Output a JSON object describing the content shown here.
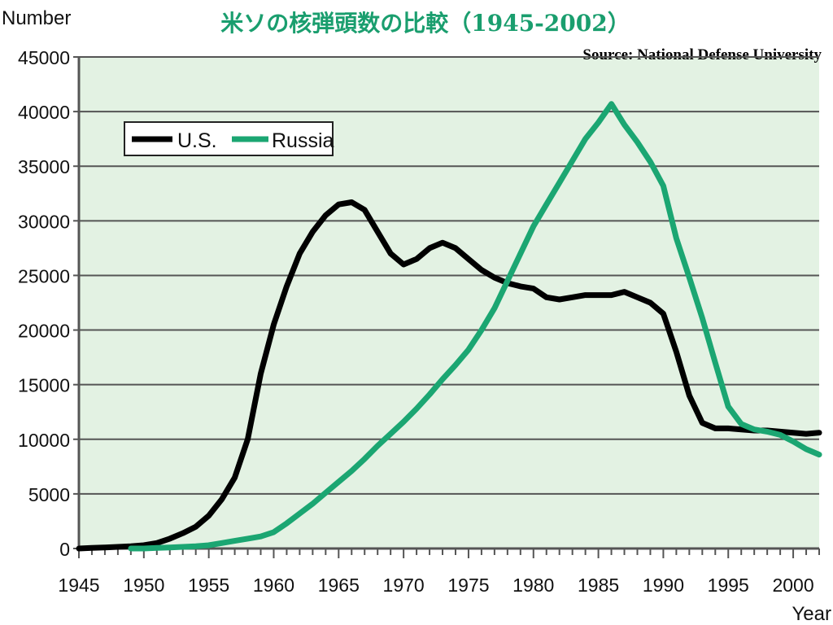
{
  "colors": {
    "plot_bg": "#e3f2e3",
    "grid": "#555555",
    "axis": "#555555",
    "title": "#1a9e6e",
    "us": "#000000",
    "russia": "#1ba672"
  },
  "chart_data": {
    "type": "line",
    "title": "米ソの核弾頭数の比較（1945-2002）",
    "source": "Source: National Defense University",
    "ylabel": "Number",
    "xlabel": "Year",
    "xlim": [
      1945,
      2002
    ],
    "ylim": [
      0,
      45000
    ],
    "xticks": [
      1945,
      1950,
      1955,
      1960,
      1965,
      1970,
      1975,
      1980,
      1985,
      1990,
      1995,
      2000
    ],
    "yticks": [
      0,
      5000,
      10000,
      15000,
      20000,
      25000,
      30000,
      35000,
      40000,
      45000
    ],
    "grid": true,
    "legend_position": "top-left",
    "series": [
      {
        "name": "U.S.",
        "color": "#000000",
        "x": [
          1945,
          1946,
          1947,
          1948,
          1949,
          1950,
          1951,
          1952,
          1953,
          1954,
          1955,
          1956,
          1957,
          1958,
          1959,
          1960,
          1961,
          1962,
          1963,
          1964,
          1965,
          1966,
          1967,
          1968,
          1969,
          1970,
          1971,
          1972,
          1973,
          1974,
          1975,
          1976,
          1977,
          1978,
          1979,
          1980,
          1981,
          1982,
          1983,
          1984,
          1985,
          1986,
          1987,
          1988,
          1989,
          1990,
          1991,
          1992,
          1993,
          1994,
          1995,
          1996,
          1997,
          1998,
          1999,
          2000,
          2001,
          2002
        ],
        "values": [
          0,
          50,
          100,
          150,
          200,
          300,
          500,
          900,
          1400,
          2000,
          3000,
          4500,
          6500,
          10000,
          16000,
          20500,
          24000,
          27000,
          29000,
          30500,
          31500,
          31700,
          31000,
          29000,
          27000,
          26000,
          26500,
          27500,
          28000,
          27500,
          26500,
          25500,
          24800,
          24300,
          24000,
          23800,
          23000,
          22800,
          23000,
          23200,
          23200,
          23200,
          23500,
          23000,
          22500,
          21500,
          18000,
          14000,
          11500,
          11000,
          11000,
          10900,
          10800,
          10800,
          10700,
          10600,
          10500,
          10600
        ]
      },
      {
        "name": "Russia",
        "color": "#1ba672",
        "x": [
          1949,
          1950,
          1951,
          1952,
          1953,
          1954,
          1955,
          1956,
          1957,
          1958,
          1959,
          1960,
          1961,
          1962,
          1963,
          1964,
          1965,
          1966,
          1967,
          1968,
          1969,
          1970,
          1971,
          1972,
          1973,
          1974,
          1975,
          1976,
          1977,
          1978,
          1979,
          1980,
          1981,
          1982,
          1983,
          1984,
          1985,
          1986,
          1987,
          1988,
          1989,
          1990,
          1991,
          1992,
          1993,
          1994,
          1995,
          1996,
          1997,
          1998,
          1999,
          2000,
          2001,
          2002
        ],
        "values": [
          0,
          0,
          50,
          100,
          150,
          200,
          300,
          500,
          700,
          900,
          1100,
          1500,
          2300,
          3200,
          4100,
          5100,
          6100,
          7100,
          8200,
          9400,
          10500,
          11600,
          12800,
          14100,
          15500,
          16800,
          18200,
          20000,
          22000,
          24500,
          27000,
          29500,
          31500,
          33500,
          35500,
          37500,
          39000,
          40700,
          38800,
          37200,
          35400,
          33200,
          28400,
          24800,
          21100,
          17000,
          13000,
          11400,
          10900,
          10700,
          10400,
          9800,
          9100,
          8600
        ]
      }
    ]
  }
}
